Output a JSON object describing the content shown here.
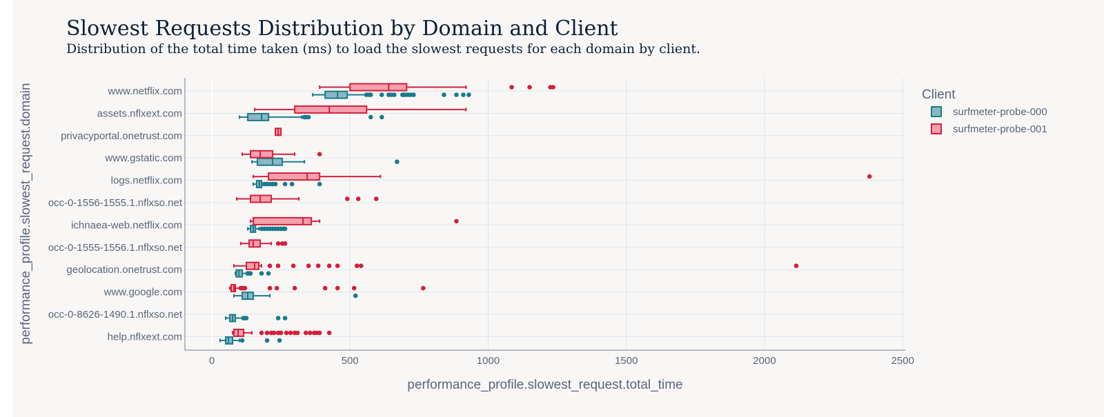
{
  "chart_data": {
    "type": "box",
    "orientation": "horizontal",
    "title": "Slowest Requests Distribution by Domain and Client",
    "subtitle": "Distribution of the total time taken (ms) to load the slowest requests for each domain by client.",
    "xlabel": "performance_profile.slowest_request.total_time",
    "ylabel": "performance_profile.slowest_request.domain",
    "xlim": [
      -100,
      2500
    ],
    "xticks": [
      0,
      500,
      1000,
      1500,
      2000,
      2500
    ],
    "grid": true,
    "legend": {
      "title": "Client",
      "placement": "top-right"
    },
    "categories": [
      "www.netflix.com",
      "assets.nflxext.com",
      "privacyportal.onetrust.com",
      "www.gstatic.com",
      "logs.netflix.com",
      "occ-0-1556-1555.1.nflxso.net",
      "ichnaea-web.netflix.com",
      "occ-0-1555-1556.1.nflxso.net",
      "geolocation.onetrust.com",
      "www.google.com",
      "occ-0-8626-1490.1.nflxso.net",
      "help.nflxext.com"
    ],
    "series": [
      {
        "name": "surfmeter-probe-000",
        "color": "#1a7a8c",
        "fill": "#8ab8c2",
        "boxes": [
          {
            "category": "www.netflix.com",
            "min": 365,
            "q1": 410,
            "median": 455,
            "q3": 490,
            "max": 555,
            "outliers": [
              560,
              570,
              575,
              615,
              640,
              650,
              660,
              690,
              695,
              700,
              710,
              720,
              730,
              840,
              885,
              910,
              930
            ]
          },
          {
            "category": "assets.nflxext.com",
            "min": 100,
            "q1": 130,
            "median": 180,
            "q3": 205,
            "max": 325,
            "outliers": [
              335,
              340,
              350,
              575,
              615
            ]
          },
          {
            "category": "www.gstatic.com",
            "min": 145,
            "q1": 165,
            "median": 220,
            "q3": 255,
            "max": 335,
            "outliers": [
              670
            ]
          },
          {
            "category": "logs.netflix.com",
            "min": 150,
            "q1": 162,
            "median": 172,
            "q3": 180,
            "max": 185,
            "outliers": [
              190,
              200,
              210,
              220,
              230,
              265,
              290,
              390
            ]
          },
          {
            "category": "ichnaea-web.netflix.com",
            "min": 130,
            "q1": 140,
            "median": 150,
            "q3": 158,
            "max": 170,
            "outliers": [
              180,
              190,
              200,
              210,
              220,
              230,
              240,
              250,
              260,
              265
            ]
          },
          {
            "category": "geolocation.onetrust.com",
            "min": 85,
            "q1": 88,
            "median": 98,
            "q3": 110,
            "max": 125,
            "outliers": [
              130,
              135,
              140,
              180,
              205
            ]
          },
          {
            "category": "www.google.com",
            "min": 80,
            "q1": 110,
            "median": 130,
            "q3": 150,
            "max": 210,
            "outliers": [
              520
            ]
          },
          {
            "category": "occ-0-8626-1490.1.nflxso.net",
            "min": 50,
            "q1": 65,
            "median": 75,
            "q3": 85,
            "max": 110,
            "outliers": [
              115,
              120,
              125,
              240,
              265
            ]
          },
          {
            "category": "help.nflxext.com",
            "min": 30,
            "q1": 50,
            "median": 60,
            "q3": 75,
            "max": 100,
            "outliers": [
              110,
              200,
              245
            ]
          }
        ]
      },
      {
        "name": "surfmeter-probe-001",
        "color": "#d41f3a",
        "fill": "#f2a1ad",
        "boxes": [
          {
            "category": "www.netflix.com",
            "min": 390,
            "q1": 500,
            "median": 640,
            "q3": 705,
            "max": 920,
            "outliers": [
              1085,
              1150,
              1225,
              1235
            ]
          },
          {
            "category": "assets.nflxext.com",
            "min": 155,
            "q1": 300,
            "median": 425,
            "q3": 560,
            "max": 920,
            "outliers": []
          },
          {
            "category": "privacyportal.onetrust.com",
            "min": 230,
            "q1": 230,
            "median": 240,
            "q3": 250,
            "max": 250,
            "outliers": []
          },
          {
            "category": "www.gstatic.com",
            "min": 110,
            "q1": 140,
            "median": 175,
            "q3": 220,
            "max": 300,
            "outliers": [
              390
            ]
          },
          {
            "category": "logs.netflix.com",
            "min": 150,
            "q1": 205,
            "median": 345,
            "q3": 390,
            "max": 610,
            "outliers": [
              2380
            ]
          },
          {
            "category": "occ-0-1556-1555.1.nflxso.net",
            "min": 90,
            "q1": 140,
            "median": 175,
            "q3": 215,
            "max": 315,
            "outliers": [
              490,
              530,
              595
            ]
          },
          {
            "category": "ichnaea-web.netflix.com",
            "min": 140,
            "q1": 150,
            "median": 330,
            "q3": 360,
            "max": 390,
            "outliers": [
              885
            ]
          },
          {
            "category": "occ-0-1555-1556.1.nflxso.net",
            "min": 105,
            "q1": 135,
            "median": 150,
            "q3": 175,
            "max": 215,
            "outliers": [
              240,
              255,
              265
            ]
          },
          {
            "category": "geolocation.onetrust.com",
            "min": 80,
            "q1": 125,
            "median": 155,
            "q3": 170,
            "max": 180,
            "outliers": [
              210,
              240,
              295,
              350,
              385,
              425,
              455,
              525,
              540,
              2115
            ]
          },
          {
            "category": "www.google.com",
            "min": 65,
            "q1": 70,
            "median": 80,
            "q3": 85,
            "max": 100,
            "outliers": [
              105,
              110,
              115,
              120,
              210,
              235,
              300,
              410,
              455,
              515,
              765
            ]
          },
          {
            "category": "help.nflxext.com",
            "min": 75,
            "q1": 80,
            "median": 95,
            "q3": 115,
            "max": 145,
            "outliers": [
              180,
              200,
              215,
              225,
              240,
              250,
              270,
              285,
              300,
              310,
              340,
              355,
              370,
              380,
              390,
              425
            ]
          }
        ]
      }
    ]
  }
}
